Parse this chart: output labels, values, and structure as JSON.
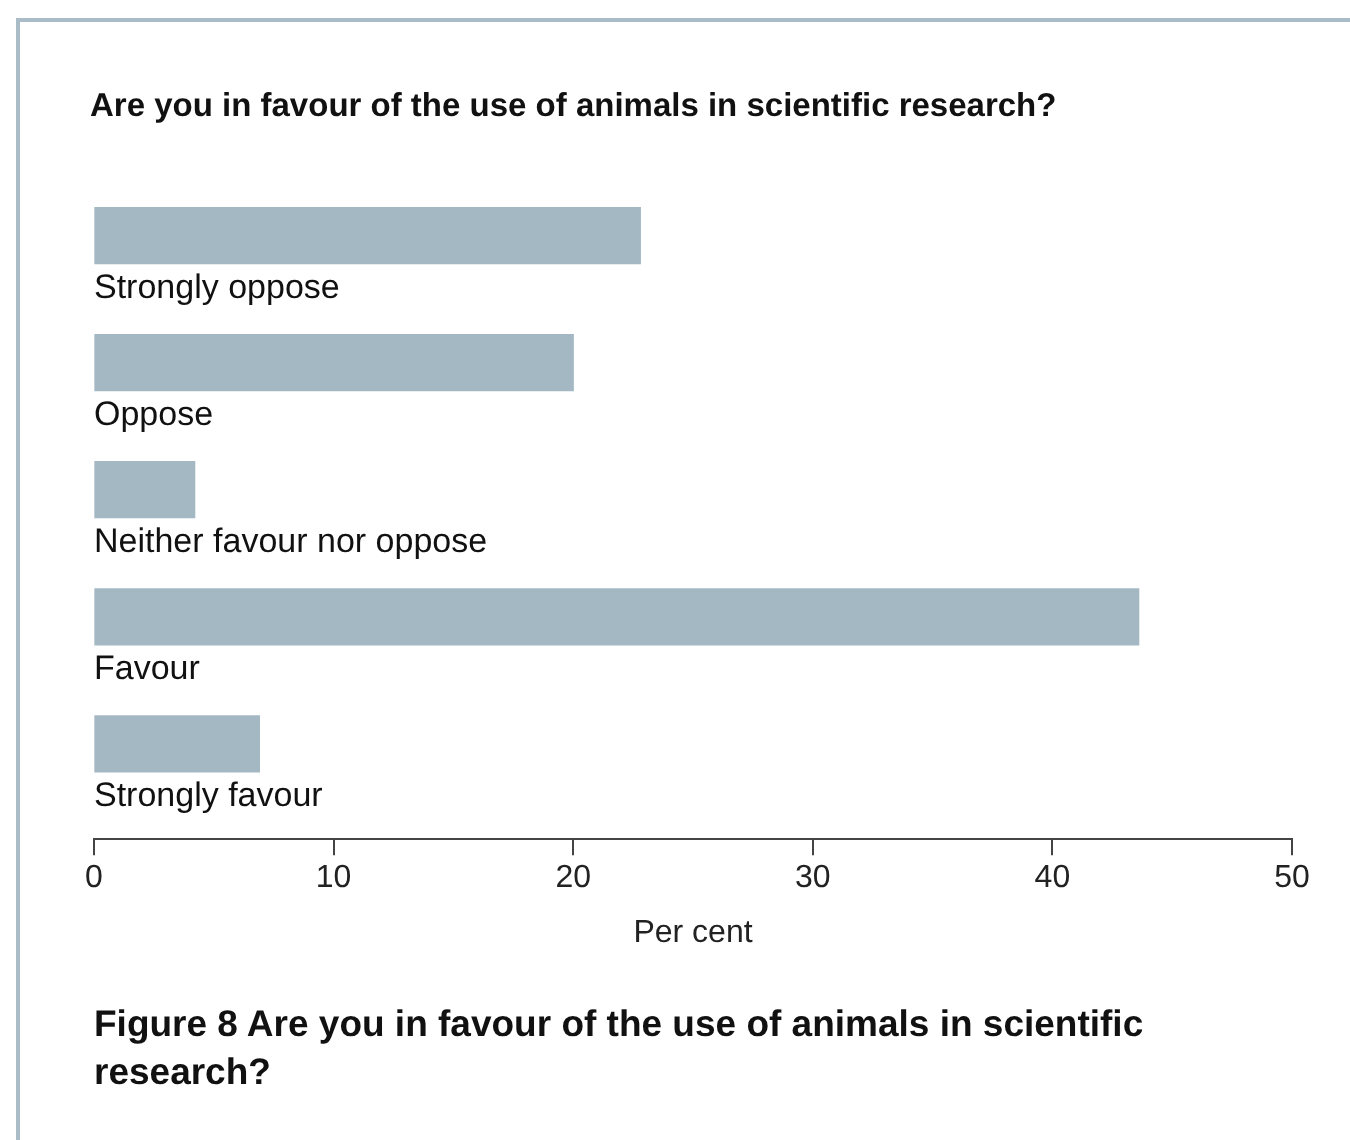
{
  "chart_data": {
    "type": "bar",
    "orientation": "horizontal",
    "title": "Are you in favour of the use of animals in scientific research?",
    "xlabel": "Per cent",
    "categories": [
      "Strongly oppose",
      "Oppose",
      "Neither favour nor oppose",
      "Favour",
      "Strongly favour"
    ],
    "values": [
      22.8,
      20.0,
      4.2,
      43.6,
      6.9
    ],
    "color": "#a4b8c4",
    "xlim": [
      0,
      50
    ],
    "xticks": [
      0,
      10,
      20,
      30,
      40,
      50
    ],
    "grid": false,
    "legend": false,
    "annotations": [
      "Figure 8 Are you in favour of the use of animals in scientific research?"
    ]
  }
}
